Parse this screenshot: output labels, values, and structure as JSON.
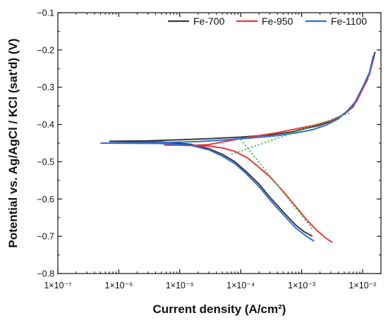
{
  "chart_data": {
    "type": "line",
    "title": "",
    "xlabel": "Current density (A/cm²)",
    "ylabel": "Potential vs. Ag/AgCl / KCl (sat'd) (V)",
    "xscale": "log",
    "xlim": [
      1e-07,
      0.02
    ],
    "ylim": [
      -0.8,
      -0.1
    ],
    "grid": false,
    "legend_position": "top-right",
    "x_ticks": [
      {
        "value": 1e-07,
        "label": "1×10⁻⁷"
      },
      {
        "value": 1e-06,
        "label": "1×10⁻⁶"
      },
      {
        "value": 1e-05,
        "label": "1×10⁻⁵"
      },
      {
        "value": 0.0001,
        "label": "1×10⁻⁴"
      },
      {
        "value": 0.001,
        "label": "1×10⁻³"
      },
      {
        "value": 0.01,
        "label": "1×10⁻²"
      }
    ],
    "y_ticks": [
      {
        "value": -0.1,
        "label": "−0.1"
      },
      {
        "value": -0.2,
        "label": "−0.2"
      },
      {
        "value": -0.3,
        "label": "−0.3"
      },
      {
        "value": -0.4,
        "label": "−0.4"
      },
      {
        "value": -0.5,
        "label": "−0.5"
      },
      {
        "value": -0.6,
        "label": "−0.6"
      },
      {
        "value": -0.7,
        "label": "−0.7"
      },
      {
        "value": -0.8,
        "label": "−0.8"
      }
    ],
    "series": [
      {
        "name": "Fe-700",
        "color": "#3a3a3a",
        "points": [
          [
            7e-07,
            -0.445
          ],
          [
            3e-06,
            -0.444
          ],
          [
            1e-05,
            -0.441
          ],
          [
            3e-05,
            -0.438
          ],
          [
            0.0001,
            -0.434
          ],
          [
            0.0003,
            -0.428
          ],
          [
            0.0007,
            -0.42
          ],
          [
            0.0012,
            -0.41
          ],
          [
            0.002,
            -0.402
          ],
          [
            0.003,
            -0.392
          ],
          [
            0.004,
            -0.382
          ],
          [
            0.005,
            -0.372
          ],
          [
            0.007,
            -0.352
          ],
          [
            0.009,
            -0.32
          ],
          [
            0.012,
            -0.28
          ],
          [
            0.0145,
            -0.235
          ],
          [
            0.016,
            -0.205
          ]
        ],
        "cathodic_points": [
          [
            7e-07,
            -0.445
          ],
          [
            5e-06,
            -0.447
          ],
          [
            1.5e-05,
            -0.453
          ],
          [
            3e-05,
            -0.465
          ],
          [
            5e-05,
            -0.48
          ],
          [
            8e-05,
            -0.5
          ],
          [
            0.00012,
            -0.525
          ],
          [
            0.0002,
            -0.56
          ],
          [
            0.0003,
            -0.595
          ],
          [
            0.0005,
            -0.635
          ],
          [
            0.0008,
            -0.67
          ],
          [
            0.0011,
            -0.688
          ],
          [
            0.0015,
            -0.7
          ]
        ]
      },
      {
        "name": "Fe-950",
        "color": "#e8373f",
        "points": [
          [
            5.5e-06,
            -0.455
          ],
          [
            1.5e-05,
            -0.456
          ],
          [
            3e-05,
            -0.454
          ],
          [
            5e-05,
            -0.447
          ],
          [
            0.0001,
            -0.438
          ],
          [
            0.0002,
            -0.43
          ],
          [
            0.0004,
            -0.422
          ],
          [
            0.0008,
            -0.412
          ],
          [
            0.0015,
            -0.403
          ],
          [
            0.003,
            -0.39
          ],
          [
            0.0045,
            -0.376
          ],
          [
            0.006,
            -0.36
          ],
          [
            0.008,
            -0.338
          ],
          [
            0.01,
            -0.305
          ],
          [
            0.013,
            -0.265
          ],
          [
            0.015,
            -0.225
          ]
        ],
        "cathodic_points": [
          [
            5.5e-06,
            -0.455
          ],
          [
            1.5e-05,
            -0.456
          ],
          [
            3e-05,
            -0.458
          ],
          [
            5e-05,
            -0.463
          ],
          [
            8e-05,
            -0.472
          ],
          [
            0.00013,
            -0.49
          ],
          [
            0.0002,
            -0.515
          ],
          [
            0.0003,
            -0.54
          ],
          [
            0.0005,
            -0.58
          ],
          [
            0.0008,
            -0.62
          ],
          [
            0.0012,
            -0.655
          ],
          [
            0.0018,
            -0.685
          ],
          [
            0.0025,
            -0.705
          ],
          [
            0.0032,
            -0.717
          ]
        ]
      },
      {
        "name": "Fe-1100",
        "color": "#2e6fd6",
        "points": [
          [
            5e-07,
            -0.45
          ],
          [
            2e-06,
            -0.449
          ],
          [
            7e-06,
            -0.448
          ],
          [
            2e-05,
            -0.446
          ],
          [
            6e-05,
            -0.441
          ],
          [
            0.00015,
            -0.436
          ],
          [
            0.0004,
            -0.43
          ],
          [
            0.0008,
            -0.423
          ],
          [
            0.0015,
            -0.414
          ],
          [
            0.0025,
            -0.402
          ],
          [
            0.004,
            -0.385
          ],
          [
            0.0055,
            -0.365
          ],
          [
            0.0075,
            -0.34
          ],
          [
            0.01,
            -0.3
          ],
          [
            0.013,
            -0.26
          ],
          [
            0.015,
            -0.215
          ]
        ],
        "cathodic_points": [
          [
            5e-07,
            -0.45
          ],
          [
            5e-06,
            -0.451
          ],
          [
            1.5e-05,
            -0.456
          ],
          [
            3e-05,
            -0.468
          ],
          [
            5e-05,
            -0.485
          ],
          [
            8e-05,
            -0.505
          ],
          [
            0.00012,
            -0.53
          ],
          [
            0.0002,
            -0.567
          ],
          [
            0.0003,
            -0.602
          ],
          [
            0.0005,
            -0.642
          ],
          [
            0.0008,
            -0.678
          ],
          [
            0.0012,
            -0.7
          ],
          [
            0.0016,
            -0.713
          ]
        ]
      }
    ],
    "tafel_fit_lines": {
      "color": "#3cc23c",
      "style": "dotted",
      "lines": [
        [
          [
            7e-05,
            -0.48
          ],
          [
            0.006,
            -0.37
          ]
        ],
        [
          [
            0.0001,
            -0.44
          ],
          [
            0.0015,
            -0.68
          ]
        ]
      ]
    }
  }
}
